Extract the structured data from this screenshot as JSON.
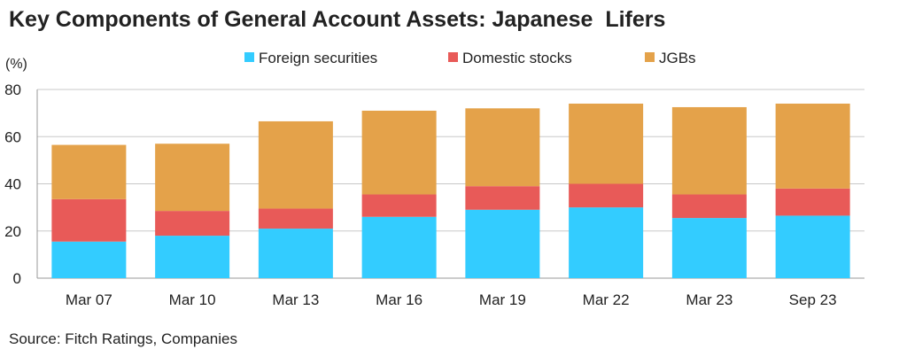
{
  "title": "Key Components of General Account Assets: Japanese  Lifers",
  "source": "Source: Fitch Ratings, Companies",
  "chart_data": {
    "type": "bar",
    "stacked": true,
    "title": "Key Components of General Account Assets: Japanese  Lifers",
    "ylabel": "(%)",
    "xlabel": "",
    "ylim": [
      0,
      80
    ],
    "yticks": [
      0,
      20,
      40,
      60,
      80
    ],
    "grid": true,
    "legend_position": "top",
    "categories": [
      "Mar 07",
      "Mar 10",
      "Mar 13",
      "Mar 16",
      "Mar 19",
      "Mar 22",
      "Mar 23",
      "Sep 23"
    ],
    "series": [
      {
        "name": "Foreign securities",
        "color": "#33ccff",
        "values": [
          15.5,
          18,
          21,
          26,
          29,
          30,
          25.5,
          26.5
        ]
      },
      {
        "name": "Domestic stocks",
        "color": "#e85a58",
        "values": [
          18,
          10.5,
          8.5,
          9.5,
          10,
          10,
          10,
          11.5
        ]
      },
      {
        "name": "JGBs",
        "color": "#e4a24a",
        "values": [
          23,
          28.5,
          37,
          35.5,
          33,
          34,
          37,
          36
        ]
      }
    ]
  }
}
